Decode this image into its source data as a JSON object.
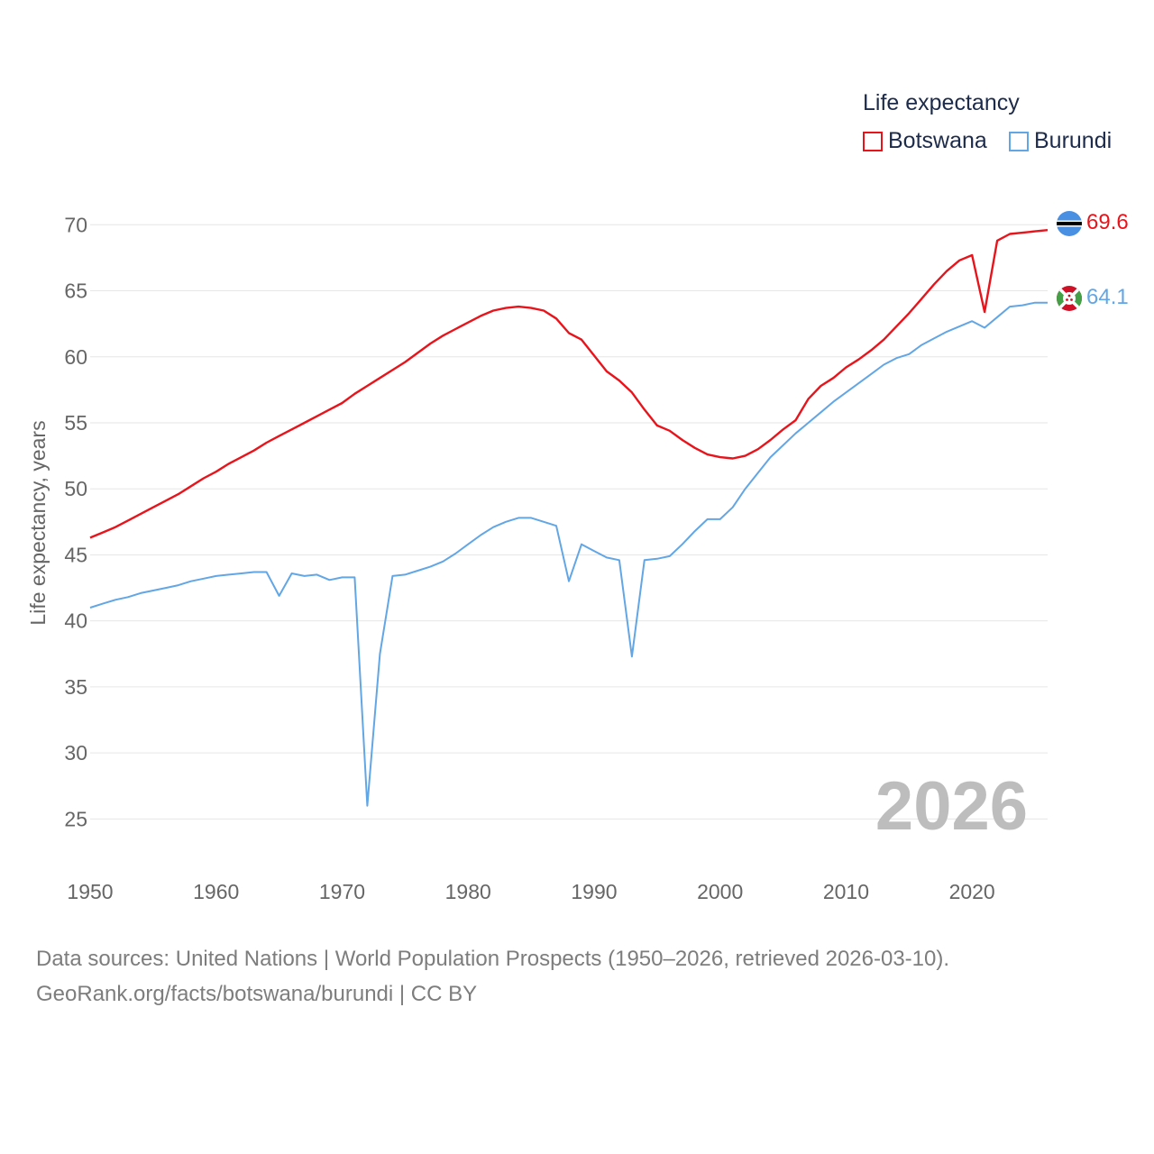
{
  "chart_data": {
    "type": "line",
    "ylabel": "Life expectancy, years",
    "xlim": [
      1950,
      2026
    ],
    "ylim": [
      22.5,
      72
    ],
    "yticks": [
      25,
      30,
      35,
      40,
      45,
      50,
      55,
      60,
      65,
      70
    ],
    "xticks": [
      1950,
      1960,
      1970,
      1980,
      1990,
      2000,
      2010,
      2020
    ],
    "x_start": 1950,
    "watermark_year": "2026",
    "legend_title": "Life expectancy",
    "series": [
      {
        "name": "Botswana",
        "color": "#e8141c",
        "end_label": "69.6",
        "flag_icon": "botswana-flag-icon",
        "values": [
          46.3,
          46.7,
          47.1,
          47.6,
          48.1,
          48.6,
          49.1,
          49.6,
          50.2,
          50.8,
          51.3,
          51.9,
          52.4,
          52.9,
          53.5,
          54.0,
          54.5,
          55.0,
          55.5,
          56.0,
          56.5,
          57.2,
          57.8,
          58.4,
          59.0,
          59.6,
          60.3,
          61.0,
          61.6,
          62.1,
          62.6,
          63.1,
          63.5,
          63.7,
          63.8,
          63.7,
          63.5,
          62.9,
          61.8,
          61.3,
          60.1,
          58.9,
          58.2,
          57.3,
          56.0,
          54.8,
          54.4,
          53.7,
          53.1,
          52.6,
          52.4,
          52.3,
          52.5,
          53.0,
          53.7,
          54.5,
          55.2,
          56.8,
          57.8,
          58.4,
          59.2,
          59.8,
          60.5,
          61.3,
          62.3,
          63.3,
          64.4,
          65.5,
          66.5,
          67.3,
          67.7,
          63.4,
          68.8,
          69.3,
          69.4,
          69.5,
          69.6
        ]
      },
      {
        "name": "Burundi",
        "color": "#62a6e5",
        "end_label": "64.1",
        "flag_icon": "burundi-flag-icon",
        "values": [
          41.0,
          41.3,
          41.6,
          41.8,
          42.1,
          42.3,
          42.5,
          42.7,
          43.0,
          43.2,
          43.4,
          43.5,
          43.6,
          43.7,
          43.7,
          41.9,
          43.6,
          43.4,
          43.5,
          43.1,
          43.3,
          43.3,
          26.0,
          37.5,
          43.4,
          43.5,
          43.8,
          44.1,
          44.5,
          45.1,
          45.8,
          46.5,
          47.1,
          47.5,
          47.8,
          47.8,
          47.5,
          47.2,
          43.0,
          45.8,
          45.3,
          44.8,
          44.6,
          37.3,
          44.6,
          44.7,
          44.9,
          45.8,
          46.8,
          47.7,
          47.7,
          48.6,
          50.0,
          51.2,
          52.4,
          53.3,
          54.2,
          55.0,
          55.8,
          56.6,
          57.3,
          58.0,
          58.7,
          59.4,
          59.9,
          60.2,
          60.9,
          61.4,
          61.9,
          62.3,
          62.7,
          62.2,
          63.0,
          63.8,
          63.9,
          64.1,
          64.1
        ]
      }
    ]
  },
  "footer": {
    "sources": "Data sources: United Nations | World Population Prospects (1950–2026, retrieved 2026-03-10).",
    "credit": "GeoRank.org/facts/botswana/burundi | CC BY"
  }
}
